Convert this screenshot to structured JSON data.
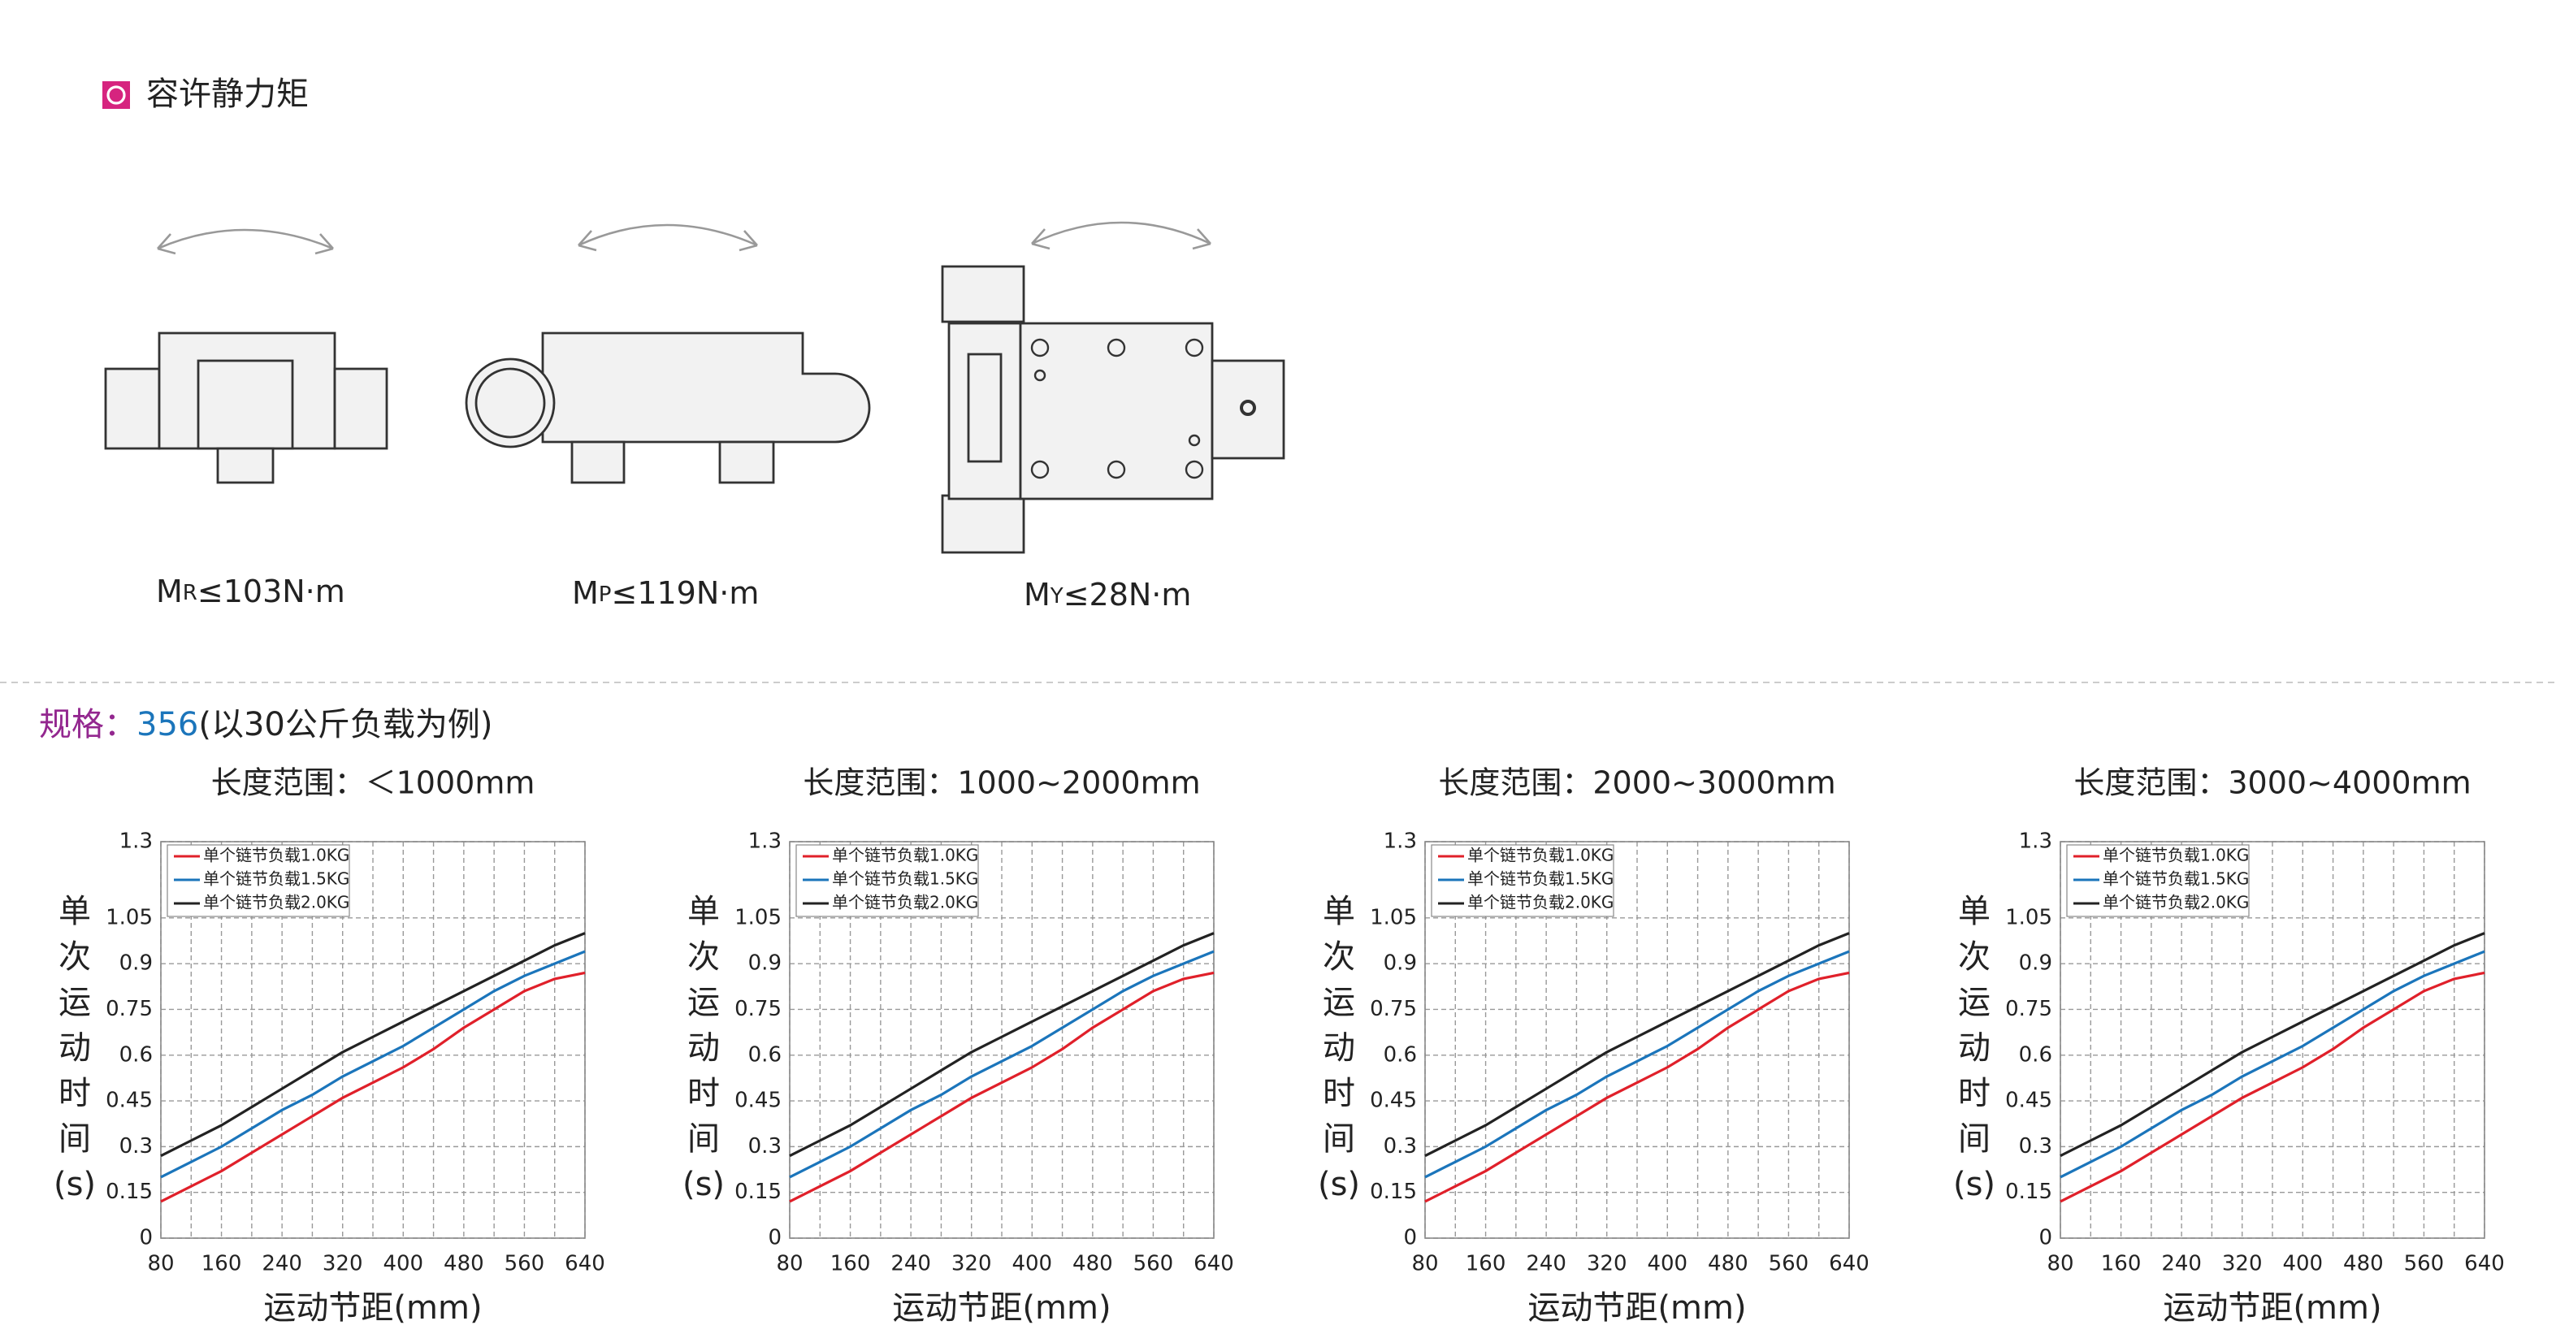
{
  "header": {
    "title": "容许静力矩"
  },
  "moments": [
    {
      "symbol": "M",
      "sub": "R",
      "text": "≤103N·m"
    },
    {
      "symbol": "M",
      "sub": "P",
      "text": "≤119N·m"
    },
    {
      "symbol": "M",
      "sub": "Y",
      "text": "≤28N·m"
    }
  ],
  "spec": {
    "label": "规格：",
    "model": "356",
    "note": "(以30公斤负载为例)"
  },
  "chart_data": [
    {
      "type": "line",
      "title": "长度范围：＜1000mm",
      "xlabel": "运动节距(mm)",
      "ylabel": [
        "单",
        "次",
        "运",
        "动",
        "时",
        "间",
        "(s)"
      ],
      "x": [
        80,
        120,
        160,
        200,
        240,
        280,
        320,
        360,
        400,
        440,
        480,
        520,
        560,
        600,
        640
      ],
      "xlim": [
        80,
        640
      ],
      "xticks": [
        80,
        160,
        240,
        320,
        400,
        480,
        560,
        640
      ],
      "xminorticks": [
        120,
        200,
        280,
        360,
        440,
        520,
        600
      ],
      "ylim": [
        0,
        1.3
      ],
      "yticks": [
        0,
        0.15,
        0.3,
        0.45,
        0.6,
        0.75,
        0.9,
        1.05,
        1.3
      ],
      "grid": true,
      "legend": "upper-left",
      "series": [
        {
          "name": "单个链节负载1.0KG",
          "color": "#e0202a",
          "values": [
            0.12,
            0.17,
            0.22,
            0.28,
            0.34,
            0.4,
            0.46,
            0.51,
            0.56,
            0.62,
            0.69,
            0.75,
            0.81,
            0.85,
            0.87
          ]
        },
        {
          "name": "单个链节负载1.5KG",
          "color": "#1b75bb",
          "values": [
            0.2,
            0.25,
            0.3,
            0.36,
            0.42,
            0.47,
            0.53,
            0.58,
            0.63,
            0.69,
            0.75,
            0.81,
            0.86,
            0.9,
            0.94
          ]
        },
        {
          "name": "单个链节负载2.0KG",
          "color": "#222222",
          "values": [
            0.27,
            0.32,
            0.37,
            0.43,
            0.49,
            0.55,
            0.61,
            0.66,
            0.71,
            0.76,
            0.81,
            0.86,
            0.91,
            0.96,
            1.0
          ]
        }
      ]
    },
    {
      "type": "line",
      "title": "长度范围：1000~2000mm",
      "xlabel": "运动节距(mm)",
      "ylabel": [
        "单",
        "次",
        "运",
        "动",
        "时",
        "间",
        "(s)"
      ],
      "x": [
        80,
        120,
        160,
        200,
        240,
        280,
        320,
        360,
        400,
        440,
        480,
        520,
        560,
        600,
        640
      ],
      "xlim": [
        80,
        640
      ],
      "xticks": [
        80,
        160,
        240,
        320,
        400,
        480,
        560,
        640
      ],
      "xminorticks": [
        120,
        200,
        280,
        360,
        440,
        520,
        600
      ],
      "ylim": [
        0,
        1.3
      ],
      "yticks": [
        0,
        0.15,
        0.3,
        0.45,
        0.6,
        0.75,
        0.9,
        1.05,
        1.3
      ],
      "grid": true,
      "legend": "upper-left",
      "series": [
        {
          "name": "单个链节负载1.0KG",
          "color": "#e0202a",
          "values": [
            0.12,
            0.17,
            0.22,
            0.28,
            0.34,
            0.4,
            0.46,
            0.51,
            0.56,
            0.62,
            0.69,
            0.75,
            0.81,
            0.85,
            0.87
          ]
        },
        {
          "name": "单个链节负载1.5KG",
          "color": "#1b75bb",
          "values": [
            0.2,
            0.25,
            0.3,
            0.36,
            0.42,
            0.47,
            0.53,
            0.58,
            0.63,
            0.69,
            0.75,
            0.81,
            0.86,
            0.9,
            0.94
          ]
        },
        {
          "name": "单个链节负载2.0KG",
          "color": "#222222",
          "values": [
            0.27,
            0.32,
            0.37,
            0.43,
            0.49,
            0.55,
            0.61,
            0.66,
            0.71,
            0.76,
            0.81,
            0.86,
            0.91,
            0.96,
            1.0
          ]
        }
      ]
    },
    {
      "type": "line",
      "title": "长度范围：2000~3000mm",
      "xlabel": "运动节距(mm)",
      "ylabel": [
        "单",
        "次",
        "运",
        "动",
        "时",
        "间",
        "(s)"
      ],
      "x": [
        80,
        120,
        160,
        200,
        240,
        280,
        320,
        360,
        400,
        440,
        480,
        520,
        560,
        600,
        640
      ],
      "xlim": [
        80,
        640
      ],
      "xticks": [
        80,
        160,
        240,
        320,
        400,
        480,
        560,
        640
      ],
      "xminorticks": [
        120,
        200,
        280,
        360,
        440,
        520,
        600
      ],
      "ylim": [
        0,
        1.3
      ],
      "yticks": [
        0,
        0.15,
        0.3,
        0.45,
        0.6,
        0.75,
        0.9,
        1.05,
        1.3
      ],
      "grid": true,
      "legend": "upper-left",
      "series": [
        {
          "name": "单个链节负载1.0KG",
          "color": "#e0202a",
          "values": [
            0.12,
            0.17,
            0.22,
            0.28,
            0.34,
            0.4,
            0.46,
            0.51,
            0.56,
            0.62,
            0.69,
            0.75,
            0.81,
            0.85,
            0.87
          ]
        },
        {
          "name": "单个链节负载1.5KG",
          "color": "#1b75bb",
          "values": [
            0.2,
            0.25,
            0.3,
            0.36,
            0.42,
            0.47,
            0.53,
            0.58,
            0.63,
            0.69,
            0.75,
            0.81,
            0.86,
            0.9,
            0.94
          ]
        },
        {
          "name": "单个链节负载2.0KG",
          "color": "#222222",
          "values": [
            0.27,
            0.32,
            0.37,
            0.43,
            0.49,
            0.55,
            0.61,
            0.66,
            0.71,
            0.76,
            0.81,
            0.86,
            0.91,
            0.96,
            1.0
          ]
        }
      ]
    },
    {
      "type": "line",
      "title": "长度范围：3000~4000mm",
      "xlabel": "运动节距(mm)",
      "ylabel": [
        "单",
        "次",
        "运",
        "动",
        "时",
        "间",
        "(s)"
      ],
      "x": [
        80,
        120,
        160,
        200,
        240,
        280,
        320,
        360,
        400,
        440,
        480,
        520,
        560,
        600,
        640
      ],
      "xlim": [
        80,
        640
      ],
      "xticks": [
        80,
        160,
        240,
        320,
        400,
        480,
        560,
        640
      ],
      "xminorticks": [
        120,
        200,
        280,
        360,
        440,
        520,
        600
      ],
      "ylim": [
        0,
        1.3
      ],
      "yticks": [
        0,
        0.15,
        0.3,
        0.45,
        0.6,
        0.75,
        0.9,
        1.05,
        1.3
      ],
      "grid": true,
      "legend": "upper-left",
      "series": [
        {
          "name": "单个链节负载1.0KG",
          "color": "#e0202a",
          "values": [
            0.12,
            0.17,
            0.22,
            0.28,
            0.34,
            0.4,
            0.46,
            0.51,
            0.56,
            0.62,
            0.69,
            0.75,
            0.81,
            0.85,
            0.87
          ]
        },
        {
          "name": "单个链节负载1.5KG",
          "color": "#1b75bb",
          "values": [
            0.2,
            0.25,
            0.3,
            0.36,
            0.42,
            0.47,
            0.53,
            0.58,
            0.63,
            0.69,
            0.75,
            0.81,
            0.86,
            0.9,
            0.94
          ]
        },
        {
          "name": "单个链节负载2.0KG",
          "color": "#222222",
          "values": [
            0.27,
            0.32,
            0.37,
            0.43,
            0.49,
            0.55,
            0.61,
            0.66,
            0.71,
            0.76,
            0.81,
            0.86,
            0.91,
            0.96,
            1.0
          ]
        }
      ]
    }
  ]
}
